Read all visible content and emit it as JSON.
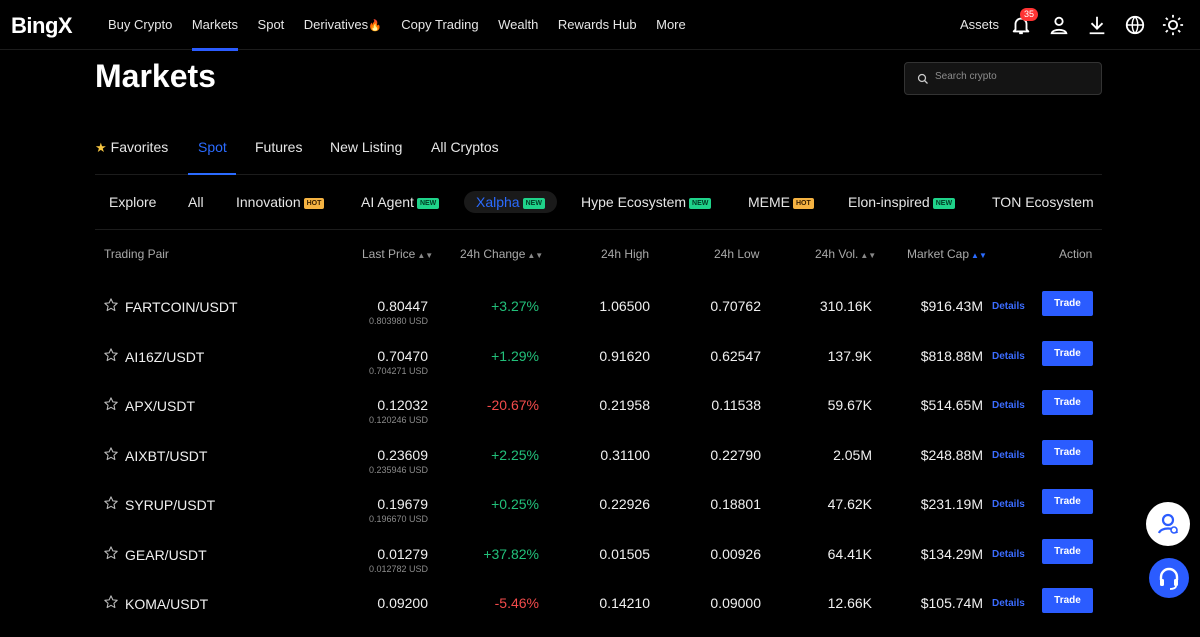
{
  "app": {
    "logo": "BingX"
  },
  "nav": {
    "items": [
      "Buy Crypto",
      "Markets",
      "Spot",
      "Derivatives",
      "Copy Trading",
      "Wealth",
      "Rewards Hub",
      "More"
    ],
    "active": "Markets",
    "assets_label": "Assets",
    "notification_count": "35"
  },
  "page": {
    "title": "Markets",
    "search_placeholder": "Search crypto"
  },
  "main_tabs": {
    "favorites": "Favorites",
    "spot": "Spot",
    "futures": "Futures",
    "new_listing": "New Listing",
    "all_cryptos": "All Cryptos",
    "active": "Spot"
  },
  "sub_tabs": {
    "explore": "Explore",
    "all": "All",
    "innovation": "Innovation",
    "innovation_tag": "HOT",
    "ai_agent": "AI Agent",
    "ai_agent_tag": "NEW",
    "xalpha": "Xalpha",
    "xalpha_tag": "NEW",
    "hype": "Hype Ecosystem",
    "hype_tag": "NEW",
    "meme": "MEME",
    "meme_tag": "HOT",
    "elon": "Elon-inspired",
    "elon_tag": "NEW",
    "ton": "TON Ecosystem",
    "active": "Xalpha"
  },
  "table": {
    "headers": {
      "pair": "Trading Pair",
      "last_price": "Last Price",
      "change": "24h Change",
      "high": "24h High",
      "low": "24h Low",
      "volume": "24h Vol.",
      "market_cap": "Market Cap",
      "action": "Action"
    },
    "details_label": "Details",
    "trade_label": "Trade",
    "rows": [
      {
        "pair": "FARTCOIN/USDT",
        "price": "0.80447",
        "price_usd": "0.803980 USD",
        "change": "+3.27%",
        "dir": "up",
        "high": "1.06500",
        "low": "0.70762",
        "vol": "310.16K",
        "mcap": "$916.43M"
      },
      {
        "pair": "AI16Z/USDT",
        "price": "0.70470",
        "price_usd": "0.704271 USD",
        "change": "+1.29%",
        "dir": "up",
        "high": "0.91620",
        "low": "0.62547",
        "vol": "137.9K",
        "mcap": "$818.88M"
      },
      {
        "pair": "APX/USDT",
        "price": "0.12032",
        "price_usd": "0.120246 USD",
        "change": "-20.67%",
        "dir": "down",
        "high": "0.21958",
        "low": "0.11538",
        "vol": "59.67K",
        "mcap": "$514.65M"
      },
      {
        "pair": "AIXBT/USDT",
        "price": "0.23609",
        "price_usd": "0.235946 USD",
        "change": "+2.25%",
        "dir": "up",
        "high": "0.31100",
        "low": "0.22790",
        "vol": "2.05M",
        "mcap": "$248.88M"
      },
      {
        "pair": "SYRUP/USDT",
        "price": "0.19679",
        "price_usd": "0.196670 USD",
        "change": "+0.25%",
        "dir": "up",
        "high": "0.22926",
        "low": "0.18801",
        "vol": "47.62K",
        "mcap": "$231.19M"
      },
      {
        "pair": "GEAR/USDT",
        "price": "0.01279",
        "price_usd": "0.012782 USD",
        "change": "+37.82%",
        "dir": "up",
        "high": "0.01505",
        "low": "0.00926",
        "vol": "64.41K",
        "mcap": "$134.29M"
      },
      {
        "pair": "KOMA/USDT",
        "price": "0.09200",
        "price_usd": "",
        "change": "-5.46%",
        "dir": "down",
        "high": "0.14210",
        "low": "0.09000",
        "vol": "12.66K",
        "mcap": "$105.74M"
      }
    ]
  },
  "colors": {
    "accent": "#2b5cff",
    "up": "#22c07a",
    "down": "#f24b4b",
    "background": "#000000"
  },
  "icons": [
    "bell-icon",
    "user-icon",
    "download-icon",
    "globe-icon",
    "sun-icon",
    "search-icon",
    "star-icon",
    "sort-icon",
    "agent-icon",
    "headset-icon"
  ]
}
